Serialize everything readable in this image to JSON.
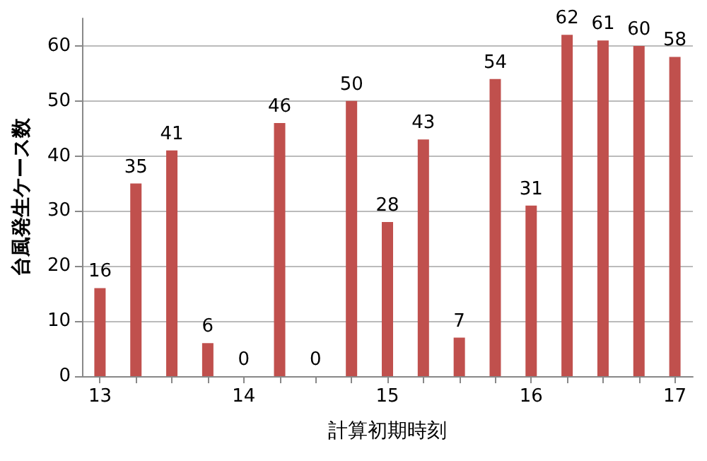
{
  "chart_data": {
    "type": "bar",
    "xlabel": "計算初期時刻",
    "ylabel": "台風発生ケース数",
    "categories": [
      "13",
      null,
      null,
      null,
      "14",
      null,
      null,
      null,
      "15",
      null,
      null,
      null,
      "16",
      null,
      null,
      null,
      "17"
    ],
    "values": [
      16,
      35,
      41,
      6,
      0,
      46,
      0,
      50,
      28,
      43,
      7,
      54,
      31,
      62,
      61,
      60,
      58
    ],
    "color": "#c0504d",
    "ylim": [
      0,
      65
    ],
    "yticks": [
      0,
      10,
      20,
      30,
      40,
      50,
      60
    ],
    "grid": "y",
    "data_labels": true
  }
}
